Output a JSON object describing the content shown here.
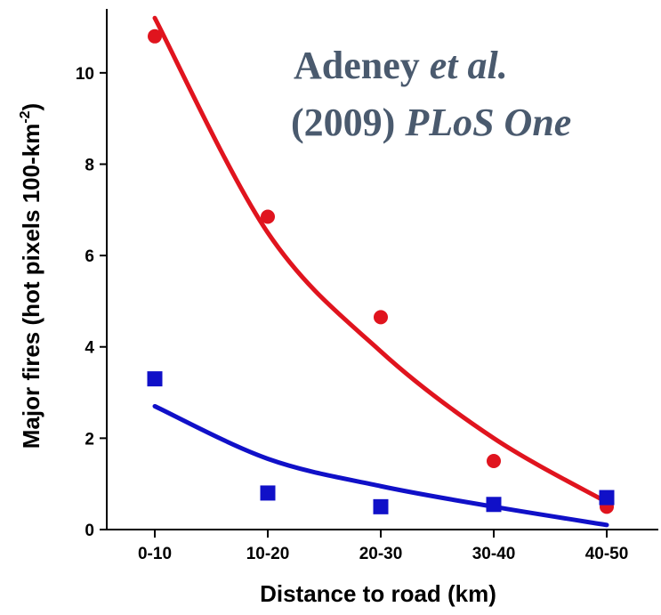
{
  "chart_data": {
    "type": "scatter",
    "title": "",
    "xlabel": "Distance to road (km)",
    "ylabel": "Major fires (hot pixels 100-km",
    "ylabel_sup": "-2",
    "ylabel_close": ")",
    "categories": [
      "0-10",
      "10-20",
      "20-30",
      "30-40",
      "40-50"
    ],
    "ylim": [
      0,
      11.4
    ],
    "yticks": [
      "0",
      "2",
      "4",
      "6",
      "8",
      "10"
    ],
    "grid": false,
    "series": [
      {
        "color": "#e0141e",
        "marker": "circle",
        "values": [
          10.8,
          6.85,
          4.65,
          1.5,
          0.5
        ],
        "trend": [
          11.2,
          6.5,
          3.9,
          2.0,
          0.6
        ]
      },
      {
        "color": "#1010c8",
        "marker": "square",
        "values": [
          3.3,
          0.8,
          0.5,
          0.55,
          0.7
        ],
        "trend": [
          2.7,
          1.55,
          0.95,
          0.5,
          0.1
        ]
      }
    ],
    "annotation": {
      "line1_regular": "Adeney ",
      "line1_italic": "et al.",
      "line2_regular": "(2009) ",
      "line2_italic": "PLoS One"
    }
  }
}
